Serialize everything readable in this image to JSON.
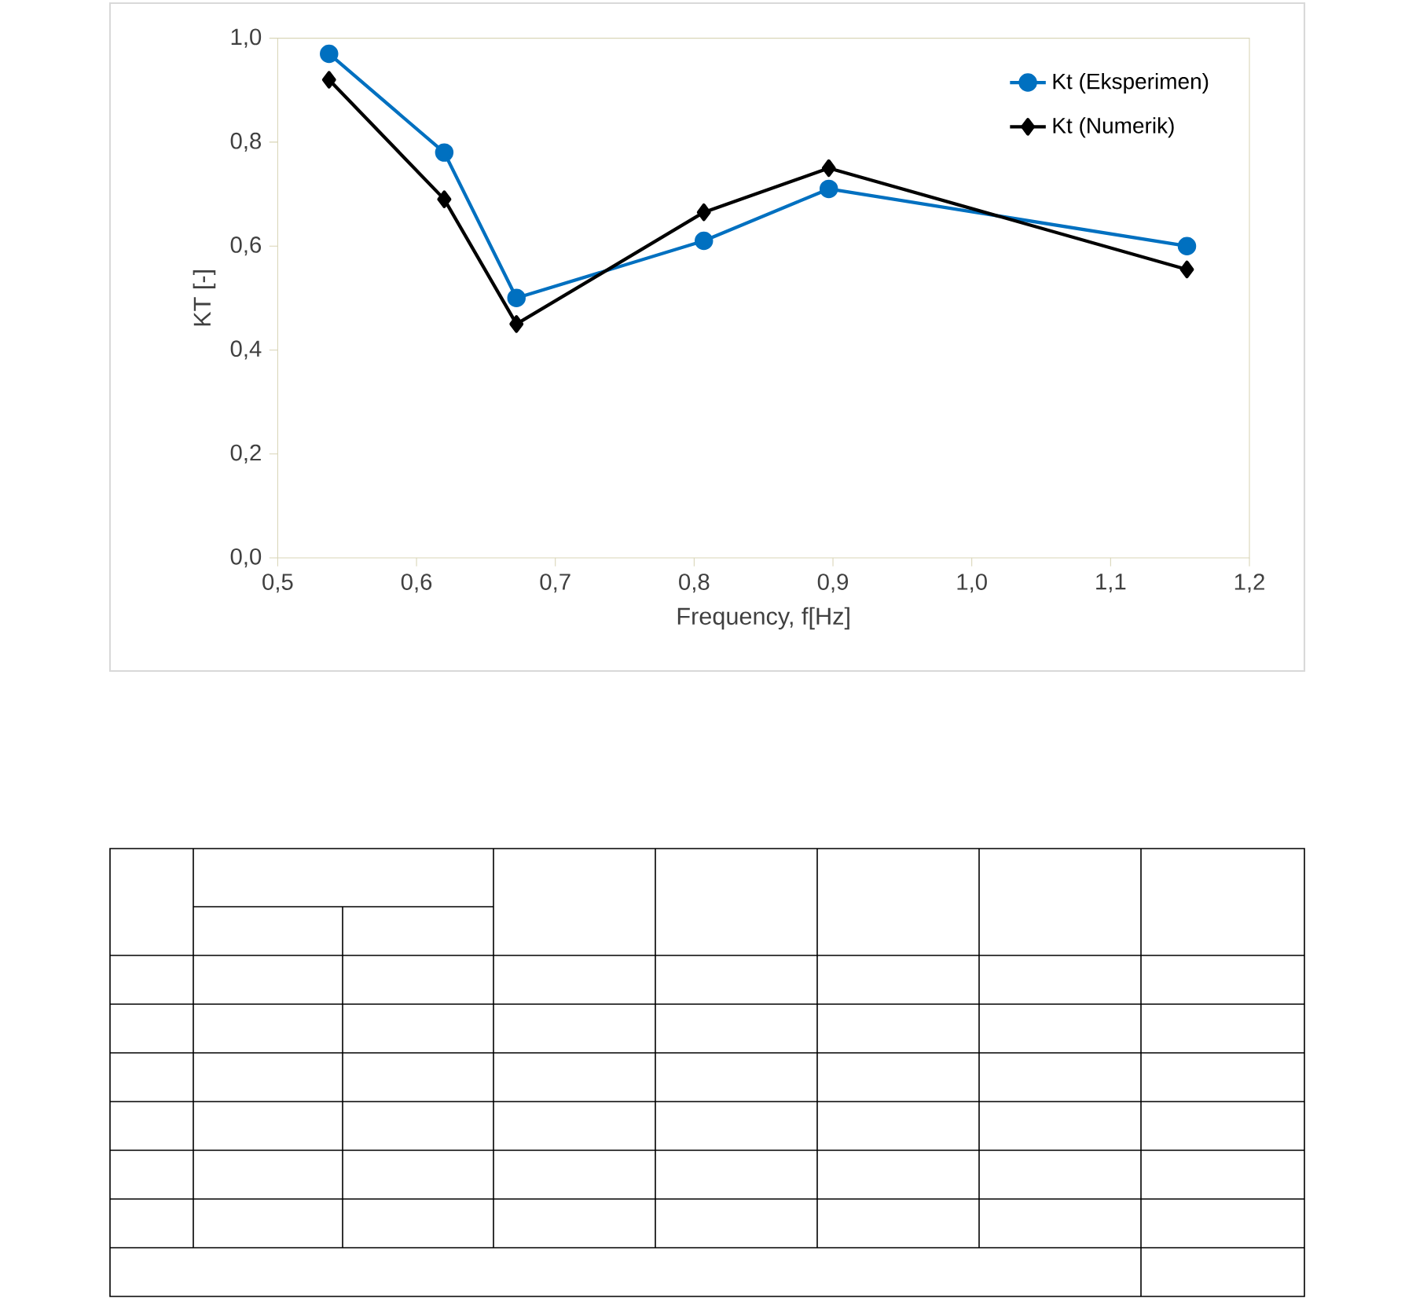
{
  "chart_data": {
    "type": "line",
    "xlabel": "Frequency, f[Hz]",
    "ylabel": "KT [-]",
    "xlim": [
      0.5,
      1.2
    ],
    "ylim": [
      0,
      1
    ],
    "xticks": [
      {
        "value": 0.5,
        "label": "0,5"
      },
      {
        "value": 0.6,
        "label": "0,6"
      },
      {
        "value": 0.7,
        "label": "0,7"
      },
      {
        "value": 0.8,
        "label": "0,8"
      },
      {
        "value": 0.9,
        "label": "0,9"
      },
      {
        "value": 1.0,
        "label": "1,0"
      },
      {
        "value": 1.1,
        "label": "1,1"
      },
      {
        "value": 1.2,
        "label": "1,2"
      }
    ],
    "yticks": [
      {
        "value": 0,
        "label": "0,0"
      },
      {
        "value": 0.2,
        "label": "0,2"
      },
      {
        "value": 0.4,
        "label": "0,4"
      },
      {
        "value": 0.6,
        "label": "0,6"
      },
      {
        "value": 0.8,
        "label": "0,8"
      },
      {
        "value": 1.0,
        "label": "1,0"
      }
    ],
    "x": [
      0.537,
      0.62,
      0.672,
      0.807,
      0.897,
      1.155
    ],
    "series": [
      {
        "name": "Kt (Eksperimen)",
        "color": "#0070c0",
        "marker": "circle",
        "values": [
          0.97,
          0.78,
          0.5,
          0.61,
          0.71,
          0.6
        ]
      },
      {
        "name": "Kt (Numerik)",
        "color": "#000000",
        "marker": "diamond",
        "values": [
          0.92,
          0.69,
          0.45,
          0.665,
          0.75,
          0.555
        ]
      }
    ],
    "grid": false,
    "legend": "top right",
    "line_style": "solid"
  }
}
